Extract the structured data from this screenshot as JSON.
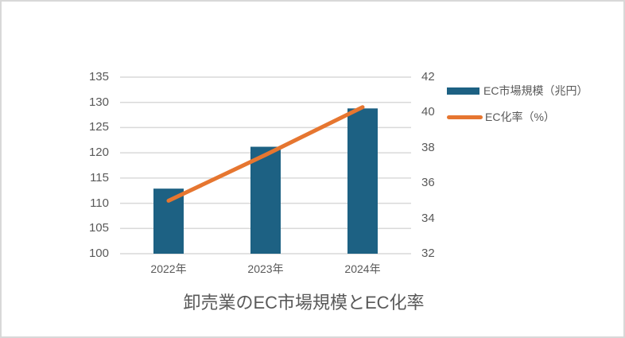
{
  "window": {
    "background": "#ffffff",
    "border_color": "#d8d8d8"
  },
  "title": "卸売業のEC市場規模とEC化率",
  "legend": {
    "items": [
      {
        "label": "EC市場規模（兆円）",
        "marker": "bar-swatch",
        "color": "#1d6183"
      },
      {
        "label": "EC化率（%）",
        "marker": "line-swatch",
        "color": "#e67630"
      }
    ]
  },
  "colors": {
    "bar": "#1d6183",
    "line": "#e67630",
    "grid": "#d9d9d9",
    "text": "#595959"
  },
  "chart_data": {
    "type": "bar",
    "subtype": "combo-bar-line-dual-axis",
    "title": "卸売業のEC市場規模とEC化率",
    "categories": [
      "2022年",
      "2023年",
      "2024年"
    ],
    "series": [
      {
        "name": "EC市場規模（兆円）",
        "type": "bar",
        "axis": "left",
        "color": "#1d6183",
        "values": [
          112.9,
          121.2,
          128.8
        ]
      },
      {
        "name": "EC化率（%）",
        "type": "line",
        "axis": "right",
        "color": "#e67630",
        "values": [
          35.0,
          37.6,
          40.3
        ]
      }
    ],
    "left_axis": {
      "min": 100,
      "max": 135,
      "step": 5,
      "ticks": [
        100,
        105,
        110,
        115,
        120,
        125,
        130,
        135
      ]
    },
    "right_axis": {
      "min": 32,
      "max": 42,
      "step": 2,
      "ticks": [
        32,
        34,
        36,
        38,
        40,
        42
      ]
    },
    "grid": true,
    "gridlines": "horizontal-on-left-axis-ticks",
    "legend_position": "right-top",
    "title_position": "bottom-center",
    "xlabel": "",
    "ylabel_left": "",
    "ylabel_right": ""
  }
}
